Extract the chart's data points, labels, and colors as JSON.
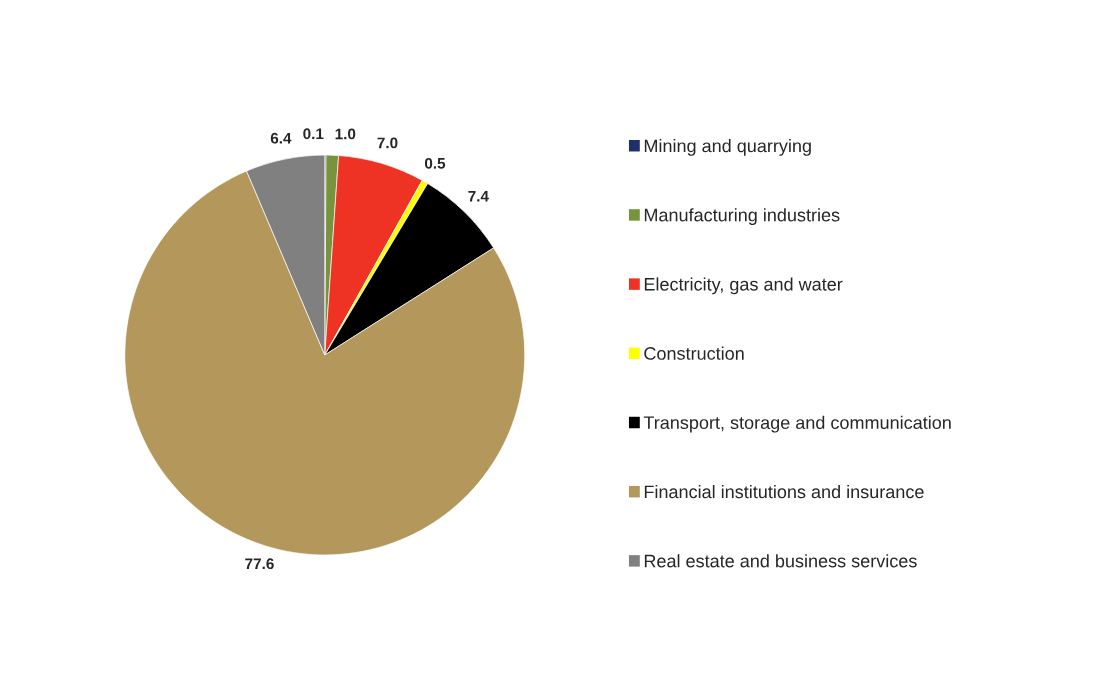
{
  "chart_data": {
    "type": "pie",
    "categories": [
      "Mining and quarrying",
      "Manufacturing industries",
      "Electricity, gas and water",
      "Construction",
      "Transport, storage and communication",
      "Financial institutions and insurance",
      "Real estate and business services"
    ],
    "values": [
      0.1,
      1.0,
      7.0,
      0.5,
      7.4,
      77.6,
      6.4
    ],
    "value_labels": [
      "0.1",
      "1.0",
      "7.0",
      "0.5",
      "7.4",
      "77.6",
      "6.4"
    ],
    "colors": [
      "#1f2f6b",
      "#77933c",
      "#ee3224",
      "#ffff00",
      "#000000",
      "#b3975b",
      "#808080"
    ],
    "legend": "right"
  }
}
